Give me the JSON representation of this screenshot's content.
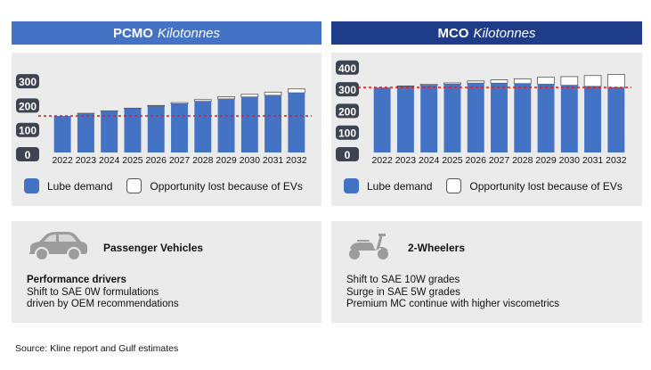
{
  "left": {
    "title": "PCMO",
    "unit": "Kilotonnes",
    "legend": {
      "demand": "Lube demand",
      "lost": "Opportunity lost because of EVs"
    }
  },
  "right": {
    "title": "MCO",
    "unit": "Kilotonnes",
    "legend": {
      "demand": "Lube demand",
      "lost": "Opportunity lost because of EVs"
    }
  },
  "colors": {
    "demand": "#4472c4",
    "lost": "#ffffff",
    "reference_line": "#e02020",
    "axis_label_bg": "#3d4350"
  },
  "chart_data": [
    {
      "type": "bar",
      "title": "PCMO Kilotonnes",
      "categories": [
        "2022",
        "2023",
        "2024",
        "2025",
        "2026",
        "2027",
        "2028",
        "2029",
        "2030",
        "2031",
        "2032"
      ],
      "series": [
        {
          "name": "Lube demand",
          "values": [
            150,
            160,
            170,
            180,
            190,
            200,
            210,
            220,
            228,
            235,
            245
          ]
        },
        {
          "name": "Opportunity lost because of EVs",
          "values": [
            0,
            1,
            1,
            2,
            3,
            5,
            7,
            9,
            11,
            13,
            16
          ]
        }
      ],
      "yticks": [
        0,
        100,
        200,
        300
      ],
      "ylim": [
        0,
        300
      ],
      "reference_line": 150,
      "stacked": true
    },
    {
      "type": "bar",
      "title": "MCO Kilotonnes",
      "categories": [
        "2022",
        "2023",
        "2024",
        "2025",
        "2026",
        "2027",
        "2028",
        "2029",
        "2030",
        "2031",
        "2032"
      ],
      "series": [
        {
          "name": "Lube demand",
          "values": [
            300,
            305,
            310,
            315,
            320,
            320,
            318,
            315,
            310,
            305,
            300
          ]
        },
        {
          "name": "Opportunity lost because of EVs",
          "values": [
            0,
            2,
            4,
            6,
            10,
            15,
            22,
            32,
            40,
            50,
            60
          ]
        }
      ],
      "yticks": [
        0,
        100,
        200,
        300,
        400
      ],
      "ylim": [
        0,
        400
      ],
      "reference_line": 300,
      "stacked": true
    }
  ],
  "cards": {
    "left": {
      "title": "Passenger Vehicles",
      "heading": "Performance drivers",
      "lines": [
        "Shift to SAE 0W formulations",
        "driven by OEM recommendations"
      ]
    },
    "right": {
      "title": "2-Wheelers",
      "lines": [
        "Shift to SAE 10W grades",
        "Surge in SAE 5W grades",
        "Premium MC continue with higher viscometrics"
      ]
    }
  },
  "source": "Source: Kline report and Gulf estimates"
}
